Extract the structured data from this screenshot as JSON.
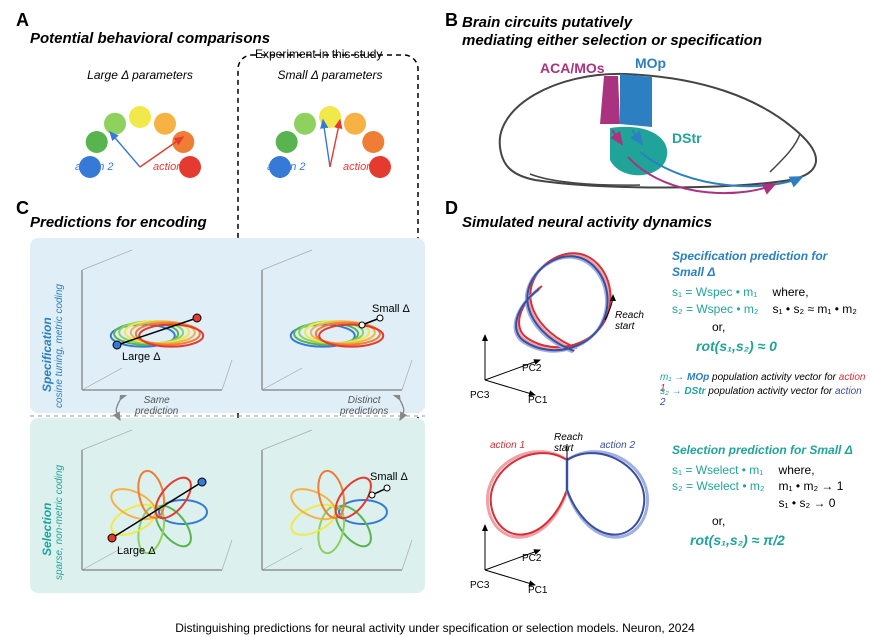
{
  "caption": "Distinguishing predictions for neural activity under specification or selection models. Neuron, 2024",
  "panelA": {
    "label": "A",
    "title": "Potential behavioral comparisons",
    "large_label": "Large Δ parameters",
    "small_label": "Small Δ parameters",
    "experiment_label": "Experiment in this study",
    "action1": "action 1",
    "action2": "action 2",
    "rainbow_colors": [
      "#3679d6",
      "#57b44e",
      "#8fd15f",
      "#f1e94a",
      "#f6b244",
      "#ef7d34",
      "#e43a2f"
    ],
    "action1_color": "#e43a2f",
    "action2_color": "#3679d6"
  },
  "panelB": {
    "label": "B",
    "title_line1": "Brain circuits putatively",
    "title_line2": "mediating either selection or specification",
    "aca": "ACA/MOs",
    "mop": "MOp",
    "dstr": "DStr",
    "aca_color": "#a9337f",
    "mop_color": "#2c7fc0",
    "dstr_color": "#20a49a",
    "outline_color": "#444444"
  },
  "panelC": {
    "label": "C",
    "title": "Predictions for encoding",
    "row1_label_line1": "Specification",
    "row1_label_line2": "cosine tuning, metric coding",
    "row2_label_line1": "Selection",
    "row2_label_line2": "sparse, non-metric coding",
    "row1_color": "#2c7fc0",
    "row2_color": "#20a49a",
    "bg_row1": "#dfeef7",
    "bg_row2": "#dcf1ee",
    "large_delta": "Large Δ",
    "small_delta": "Small Δ",
    "same_pred": "Same\nprediction",
    "distinct_pred": "Distinct\npredictions",
    "ring_colors": [
      "#3679d6",
      "#57b44e",
      "#8fd15f",
      "#f1e94a",
      "#f6b244",
      "#ef7d34",
      "#e43a2f"
    ]
  },
  "panelD": {
    "label": "D",
    "title": "Simulated neural activity dynamics",
    "axes": {
      "x": "PC1",
      "y": "PC2",
      "z": "PC3"
    },
    "reach_start": "Reach\nstart",
    "action1": "action 1",
    "action2": "action 2",
    "traj_color1": "#d4303a",
    "traj_color2": "#3a4ea0",
    "traj_color1_light": "#f0a1a6",
    "traj_color2_light": "#9fb0e0",
    "spec_header": "Specification prediction for Small Δ",
    "spec_eq1_lhs": "s₁ = Wspec • m₁",
    "spec_eq2_lhs": "s₂ = Wspec • m₂",
    "spec_where": "where,",
    "spec_cond": "s₁ • s₂ ≈ m₁ • m₂",
    "spec_rot": "rot(s₁,s₂) ≈ 0",
    "sel_header": "Selection  prediction for Small Δ",
    "sel_eq1_lhs": "s₁ = Wselect • m₁",
    "sel_eq2_lhs": "s₂ = Wselect • m₂",
    "sel_where": "where,",
    "sel_cond1": "m₁ • m₂ → 1",
    "sel_cond2": "s₁ • s₂ → 0",
    "sel_rot": "rot(s₁,s₂) ≈ π/2",
    "teal": "#20a49a",
    "legend_m1_a": "m₁  →",
    "legend_m1_b": " MOp",
    "legend_m1_c": " population activity vector for ",
    "legend_m1_d": "action 1",
    "legend_s2_a": "s₂  →",
    "legend_s2_b": " DStr",
    "legend_s2_c": " population activity vector for ",
    "legend_s2_d": "action 2",
    "or": "or,"
  }
}
